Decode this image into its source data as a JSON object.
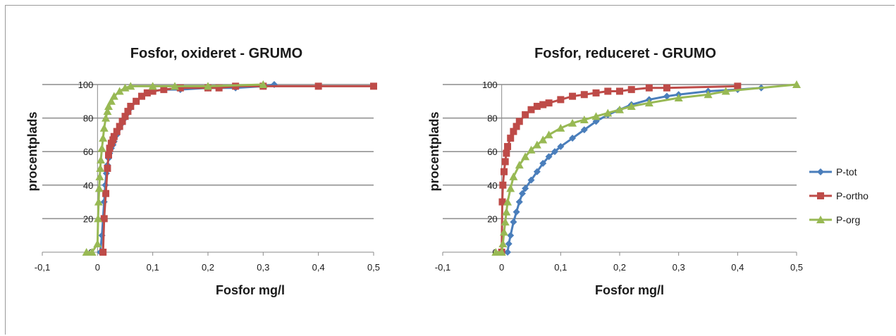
{
  "chart_data": [
    {
      "type": "scatter",
      "title": "Fosfor, oxideret - GRUMO",
      "xlabel": "Fosfor  mg/l",
      "ylabel": "procentplads",
      "xlim": [
        -0.1,
        0.5
      ],
      "ylim": [
        0,
        100
      ],
      "x_ticks": [
        "-0,1",
        "0",
        "0,1",
        "0,2",
        "0,3",
        "0,4",
        "0,5"
      ],
      "y_ticks": [
        "0",
        "20",
        "40",
        "60",
        "80",
        "100"
      ],
      "grid": "horizontal",
      "legend": null,
      "series": [
        {
          "name": "P-tot",
          "color": "#4a7ebb",
          "marker": "diamond",
          "x": [
            0.005,
            0.008,
            0.01,
            0.012,
            0.014,
            0.016,
            0.018,
            0.02,
            0.022,
            0.025,
            0.028,
            0.03,
            0.035,
            0.04,
            0.045,
            0.05,
            0.055,
            0.06,
            0.07,
            0.08,
            0.09,
            0.1,
            0.12,
            0.15,
            0.2,
            0.25,
            0.3,
            0.32
          ],
          "y": [
            0,
            10,
            20,
            30,
            40,
            47,
            52,
            56,
            59,
            62,
            64,
            66,
            70,
            74,
            77,
            80,
            83,
            86,
            90,
            93,
            95,
            96,
            97,
            97,
            98,
            98,
            99,
            100
          ]
        },
        {
          "name": "P-ortho",
          "color": "#be4b48",
          "marker": "square",
          "x": [
            0.01,
            0.012,
            0.015,
            0.018,
            0.02,
            0.022,
            0.025,
            0.028,
            0.03,
            0.035,
            0.04,
            0.045,
            0.05,
            0.055,
            0.06,
            0.07,
            0.08,
            0.09,
            0.1,
            0.12,
            0.15,
            0.2,
            0.22,
            0.25,
            0.3,
            0.4,
            0.5
          ],
          "y": [
            0,
            20,
            35,
            50,
            58,
            62,
            65,
            67,
            69,
            72,
            75,
            78,
            81,
            84,
            87,
            90,
            93,
            95,
            96,
            97,
            98,
            98,
            98,
            99,
            99,
            99,
            99
          ]
        },
        {
          "name": "P-org",
          "color": "#98b954",
          "marker": "triangle",
          "x": [
            -0.02,
            -0.01,
            0,
            0.001,
            0.002,
            0.003,
            0.004,
            0.005,
            0.006,
            0.008,
            0.01,
            0.012,
            0.015,
            0.018,
            0.02,
            0.025,
            0.03,
            0.04,
            0.05,
            0.06,
            0.1,
            0.14,
            0.2,
            0.3
          ],
          "y": [
            0,
            0,
            5,
            20,
            30,
            38,
            45,
            50,
            55,
            62,
            68,
            74,
            80,
            84,
            87,
            90,
            93,
            96,
            98,
            99,
            99,
            99,
            99,
            100
          ]
        }
      ]
    },
    {
      "type": "scatter",
      "title": "Fosfor, reduceret - GRUMO",
      "xlabel": "Fosfor mg/l",
      "ylabel": "procentplads",
      "xlim": [
        -0.1,
        0.5
      ],
      "ylim": [
        0,
        100
      ],
      "x_ticks": [
        "-0,1",
        "0",
        "0,1",
        "0,2",
        "0,3",
        "0,4",
        "0,5"
      ],
      "y_ticks": [
        "0",
        "20",
        "40",
        "60",
        "80",
        "100"
      ],
      "grid": "horizontal",
      "legend": "right",
      "series": [
        {
          "name": "P-tot",
          "color": "#4a7ebb",
          "marker": "diamond",
          "x": [
            0.01,
            0.012,
            0.015,
            0.02,
            0.025,
            0.03,
            0.035,
            0.04,
            0.05,
            0.06,
            0.07,
            0.08,
            0.09,
            0.1,
            0.12,
            0.14,
            0.16,
            0.18,
            0.2,
            0.22,
            0.25,
            0.28,
            0.3,
            0.35,
            0.4,
            0.44
          ],
          "y": [
            0,
            5,
            10,
            18,
            24,
            30,
            35,
            38,
            43,
            48,
            53,
            57,
            60,
            63,
            68,
            73,
            78,
            82,
            85,
            88,
            91,
            93,
            94,
            96,
            97,
            98
          ]
        },
        {
          "name": "P-ortho",
          "color": "#be4b48",
          "marker": "square",
          "x": [
            0,
            0.001,
            0.002,
            0.004,
            0.006,
            0.008,
            0.01,
            0.015,
            0.02,
            0.025,
            0.03,
            0.04,
            0.05,
            0.06,
            0.07,
            0.08,
            0.1,
            0.12,
            0.14,
            0.16,
            0.18,
            0.2,
            0.22,
            0.25,
            0.28,
            0.4
          ],
          "y": [
            0,
            30,
            40,
            48,
            54,
            59,
            63,
            68,
            72,
            75,
            78,
            82,
            85,
            87,
            88,
            89,
            91,
            93,
            94,
            95,
            96,
            96,
            97,
            98,
            98,
            99
          ]
        },
        {
          "name": "P-org",
          "color": "#98b954",
          "marker": "triangle",
          "x": [
            -0.01,
            0,
            0.002,
            0.004,
            0.006,
            0.008,
            0.01,
            0.015,
            0.02,
            0.03,
            0.04,
            0.05,
            0.06,
            0.07,
            0.08,
            0.1,
            0.12,
            0.14,
            0.16,
            0.18,
            0.2,
            0.22,
            0.25,
            0.3,
            0.35,
            0.38,
            0.5
          ],
          "y": [
            0,
            0,
            5,
            12,
            18,
            24,
            30,
            38,
            45,
            52,
            57,
            61,
            64,
            67,
            70,
            74,
            77,
            79,
            81,
            83,
            85,
            87,
            89,
            92,
            94,
            96,
            100
          ]
        }
      ]
    }
  ]
}
